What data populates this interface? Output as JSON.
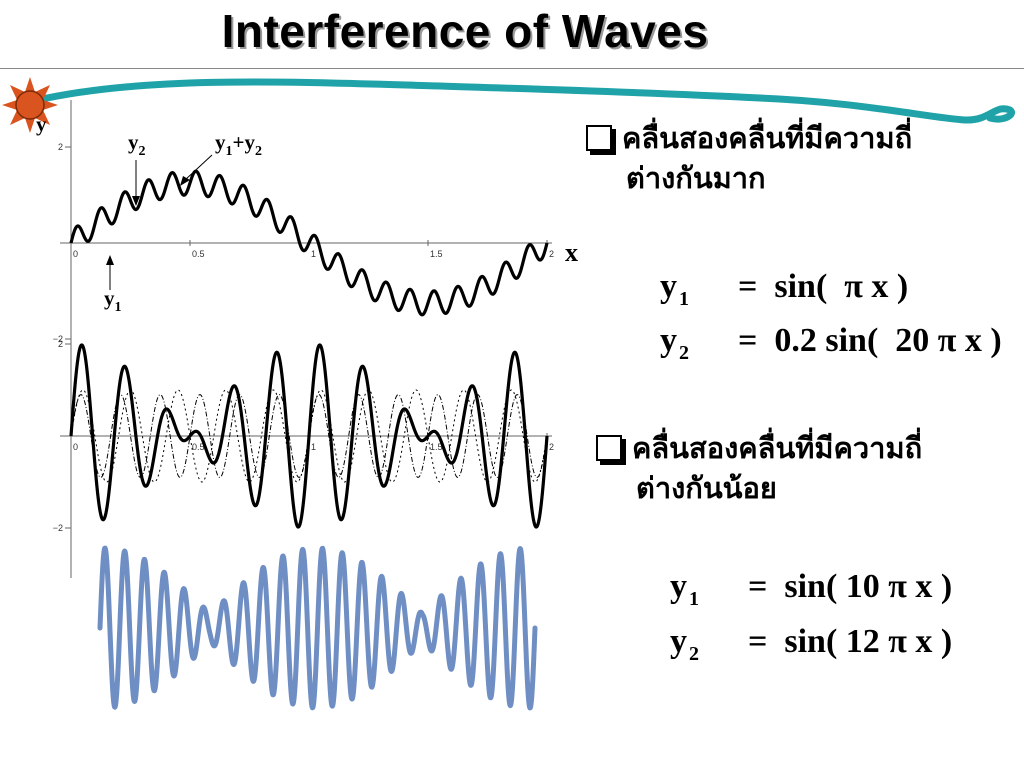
{
  "title": "Interference of Waves",
  "plot1": {
    "axis_y_label": "y",
    "axis_x_label": "x",
    "x_ticks": [
      "0",
      "0.5",
      "1",
      "1.5",
      "2"
    ],
    "y_ticks": [
      "2",
      "−2"
    ],
    "labels": {
      "y2": {
        "main": "y",
        "sub": "2"
      },
      "sum": {
        "main": "y",
        "sub1": "1",
        "plus": "+y",
        "sub2": "2"
      },
      "y1": {
        "main": "y",
        "sub": "1"
      }
    },
    "formula": {
      "y1_amp": 1,
      "y1_k": 1,
      "y2_amp": 0.2,
      "y2_k": 20
    }
  },
  "plot2": {
    "x_ticks": [
      "0",
      "0.5",
      "1",
      "1.5",
      "2"
    ],
    "y_ticks": [
      "2",
      "−2"
    ],
    "formula": {
      "y1_amp": 1,
      "y1_k": 10,
      "y2_amp": 1,
      "y2_k": 12
    }
  },
  "bullets": [
    {
      "line1": "คลื่นสองคลื่นที่มีความถี่",
      "line2": "ต่างกันมาก"
    },
    {
      "line1": "คลื่นสองคลื่นที่มีความถี่",
      "line2": "ต่างกันน้อย"
    }
  ],
  "equations": {
    "set1": [
      {
        "lhs": "y",
        "sub": "1",
        "rhs": "=  sin(  π x )"
      },
      {
        "lhs": "y",
        "sub": "2",
        "rhs": "=  0.2 sin(  20 π x )"
      }
    ],
    "set2": [
      {
        "lhs": "y",
        "sub": "1",
        "rhs": "=  sin( 10 π x )"
      },
      {
        "lhs": "y",
        "sub": "2",
        "rhs": "=  sin( 12 π x )"
      }
    ]
  },
  "colors": {
    "wave_banner": "#1fa3a8",
    "sun": "#d9541e",
    "beat_wave": "#6f8fc4",
    "curve": "#000000"
  },
  "icons": {
    "logo": "sun-icon",
    "bullet": "square-bullet-icon"
  }
}
